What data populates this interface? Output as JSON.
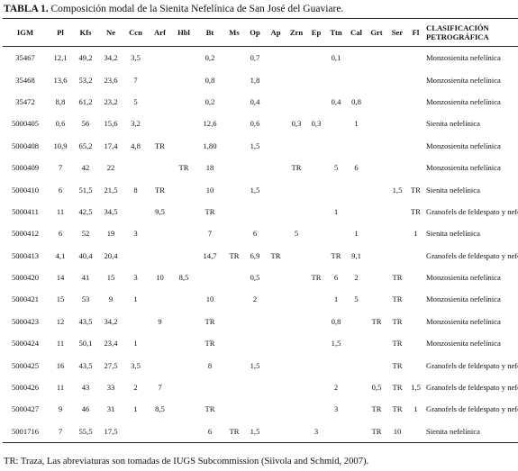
{
  "title": {
    "label": "TABLA 1.",
    "text": "Composición modal de la Sienita Nefelínica de San José del Guaviare."
  },
  "columns": [
    "IGM",
    "Pl",
    "Kfs",
    "Ne",
    "Ccn",
    "Arf",
    "Hbl",
    "Bt",
    "Ms",
    "Op",
    "Ap",
    "Zrn",
    "Ep",
    "Ttn",
    "Cal",
    "Grt",
    "Ser",
    "Fl",
    "CLASIFICACIÓN PETROGRÁFICA"
  ],
  "rows": [
    [
      "35467",
      "12,1",
      "49,2",
      "34,2",
      "3,5",
      "",
      "",
      "0,2",
      "",
      "0,7",
      "",
      "",
      "",
      "0,1",
      "",
      "",
      "",
      "",
      "Monzosienita nefelínica"
    ],
    [
      "35468",
      "13,6",
      "53,2",
      "23,6",
      "7",
      "",
      "",
      "0,8",
      "",
      "1,8",
      "",
      "",
      "",
      "",
      "",
      "",
      "",
      "",
      "Monzosienita nefelínica"
    ],
    [
      "35472",
      "8,8",
      "61,2",
      "23,2",
      "5",
      "",
      "",
      "0,2",
      "",
      "0,4",
      "",
      "",
      "",
      "0,4",
      "0,8",
      "",
      "",
      "",
      "Monzosienita nefelínica"
    ],
    [
      "5000405",
      "0,6",
      "56",
      "15,6",
      "3,2",
      "",
      "",
      "12,6",
      "",
      "0,6",
      "",
      "0,3",
      "0,3",
      "",
      "1",
      "",
      "",
      "",
      "Sienita nefelínica"
    ],
    [
      "5000408",
      "10,9",
      "65,2",
      "17,4",
      "4,8",
      "TR",
      "",
      "1,80",
      "",
      "1,5",
      "",
      "",
      "",
      "",
      "",
      "",
      "",
      "",
      "Monzosienita nefelínica"
    ],
    [
      "5000409",
      "7",
      "42",
      "22",
      "",
      "",
      "TR",
      "18",
      "",
      "",
      "",
      "TR",
      "",
      "5",
      "6",
      "",
      "",
      "",
      "Monzosienita nefelínica"
    ],
    [
      "5000410",
      "6",
      "51,5",
      "21,5",
      "8",
      "TR",
      "",
      "10",
      "",
      "1,5",
      "",
      "",
      "",
      "",
      "",
      "",
      "1,5",
      "TR",
      "Sienita nefelínica"
    ],
    [
      "5000411",
      "11",
      "42,5",
      "34,5",
      "",
      "9,5",
      "",
      "TR",
      "",
      "",
      "",
      "",
      "",
      "1",
      "",
      "",
      "",
      "TR",
      "Granofels de feldespato y nefelina"
    ],
    [
      "5000412",
      "6",
      "52",
      "19",
      "3",
      "",
      "",
      "7",
      "",
      "6",
      "",
      "5",
      "",
      "",
      "1",
      "",
      "",
      "1",
      "Sienita nefelínica"
    ],
    [
      "5000413",
      "4,1",
      "40,4",
      "20,4",
      "",
      "",
      "",
      "14,7",
      "TR",
      "6,9",
      "TR",
      "",
      "",
      "TR",
      "9,1",
      "",
      "",
      "",
      "Granofels de feldespato y nefelina"
    ],
    [
      "5000420",
      "14",
      "41",
      "15",
      "3",
      "10",
      "8,5",
      "",
      "",
      "0,5",
      "",
      "",
      "TR",
      "6",
      "2",
      "",
      "TR",
      "",
      "Monzosienita nefelínica"
    ],
    [
      "5000421",
      "15",
      "53",
      "9",
      "1",
      "",
      "",
      "10",
      "",
      "2",
      "",
      "",
      "",
      "1",
      "5",
      "",
      "TR",
      "",
      "Monzosienita nefelínica"
    ],
    [
      "5000423",
      "12",
      "43,5",
      "34,2",
      "",
      "9",
      "",
      "TR",
      "",
      "",
      "",
      "",
      "",
      "0,8",
      "",
      "TR",
      "TR",
      "",
      "Monzosienita nefelínica"
    ],
    [
      "5000424",
      "11",
      "50,1",
      "23,4",
      "1",
      "",
      "",
      "TR",
      "",
      "",
      "",
      "",
      "",
      "1,5",
      "",
      "",
      "TR",
      "",
      "Monzosienita nefelínica"
    ],
    [
      "5000425",
      "16",
      "43,5",
      "27,5",
      "3,5",
      "",
      "",
      "8",
      "",
      "1,5",
      "",
      "",
      "",
      "",
      "",
      "",
      "TR",
      "",
      "Granofels de feldespato y nefelina"
    ],
    [
      "5000426",
      "11",
      "43",
      "33",
      "2",
      "7",
      "",
      "",
      "",
      "",
      "",
      "",
      "",
      "2",
      "",
      "0,5",
      "TR",
      "1,5",
      "Granofels de feldespato y nefelina"
    ],
    [
      "5000427",
      "9",
      "46",
      "31",
      "1",
      "8,5",
      "",
      "TR",
      "",
      "",
      "",
      "",
      "",
      "3",
      "",
      "TR",
      "TR",
      "1",
      "Granofels de feldespato y nefelina"
    ],
    [
      "5001716",
      "7",
      "55,5",
      "17,5",
      "",
      "",
      "",
      "6",
      "TR",
      "1,5",
      "",
      "",
      "3",
      "",
      "",
      "TR",
      "10",
      "",
      "Sienita nefelínica"
    ]
  ],
  "footnote": "TR: Traza, Las abreviaturas son tomadas de IUGS Subcommission (Siivola and Schmid, 2007)."
}
